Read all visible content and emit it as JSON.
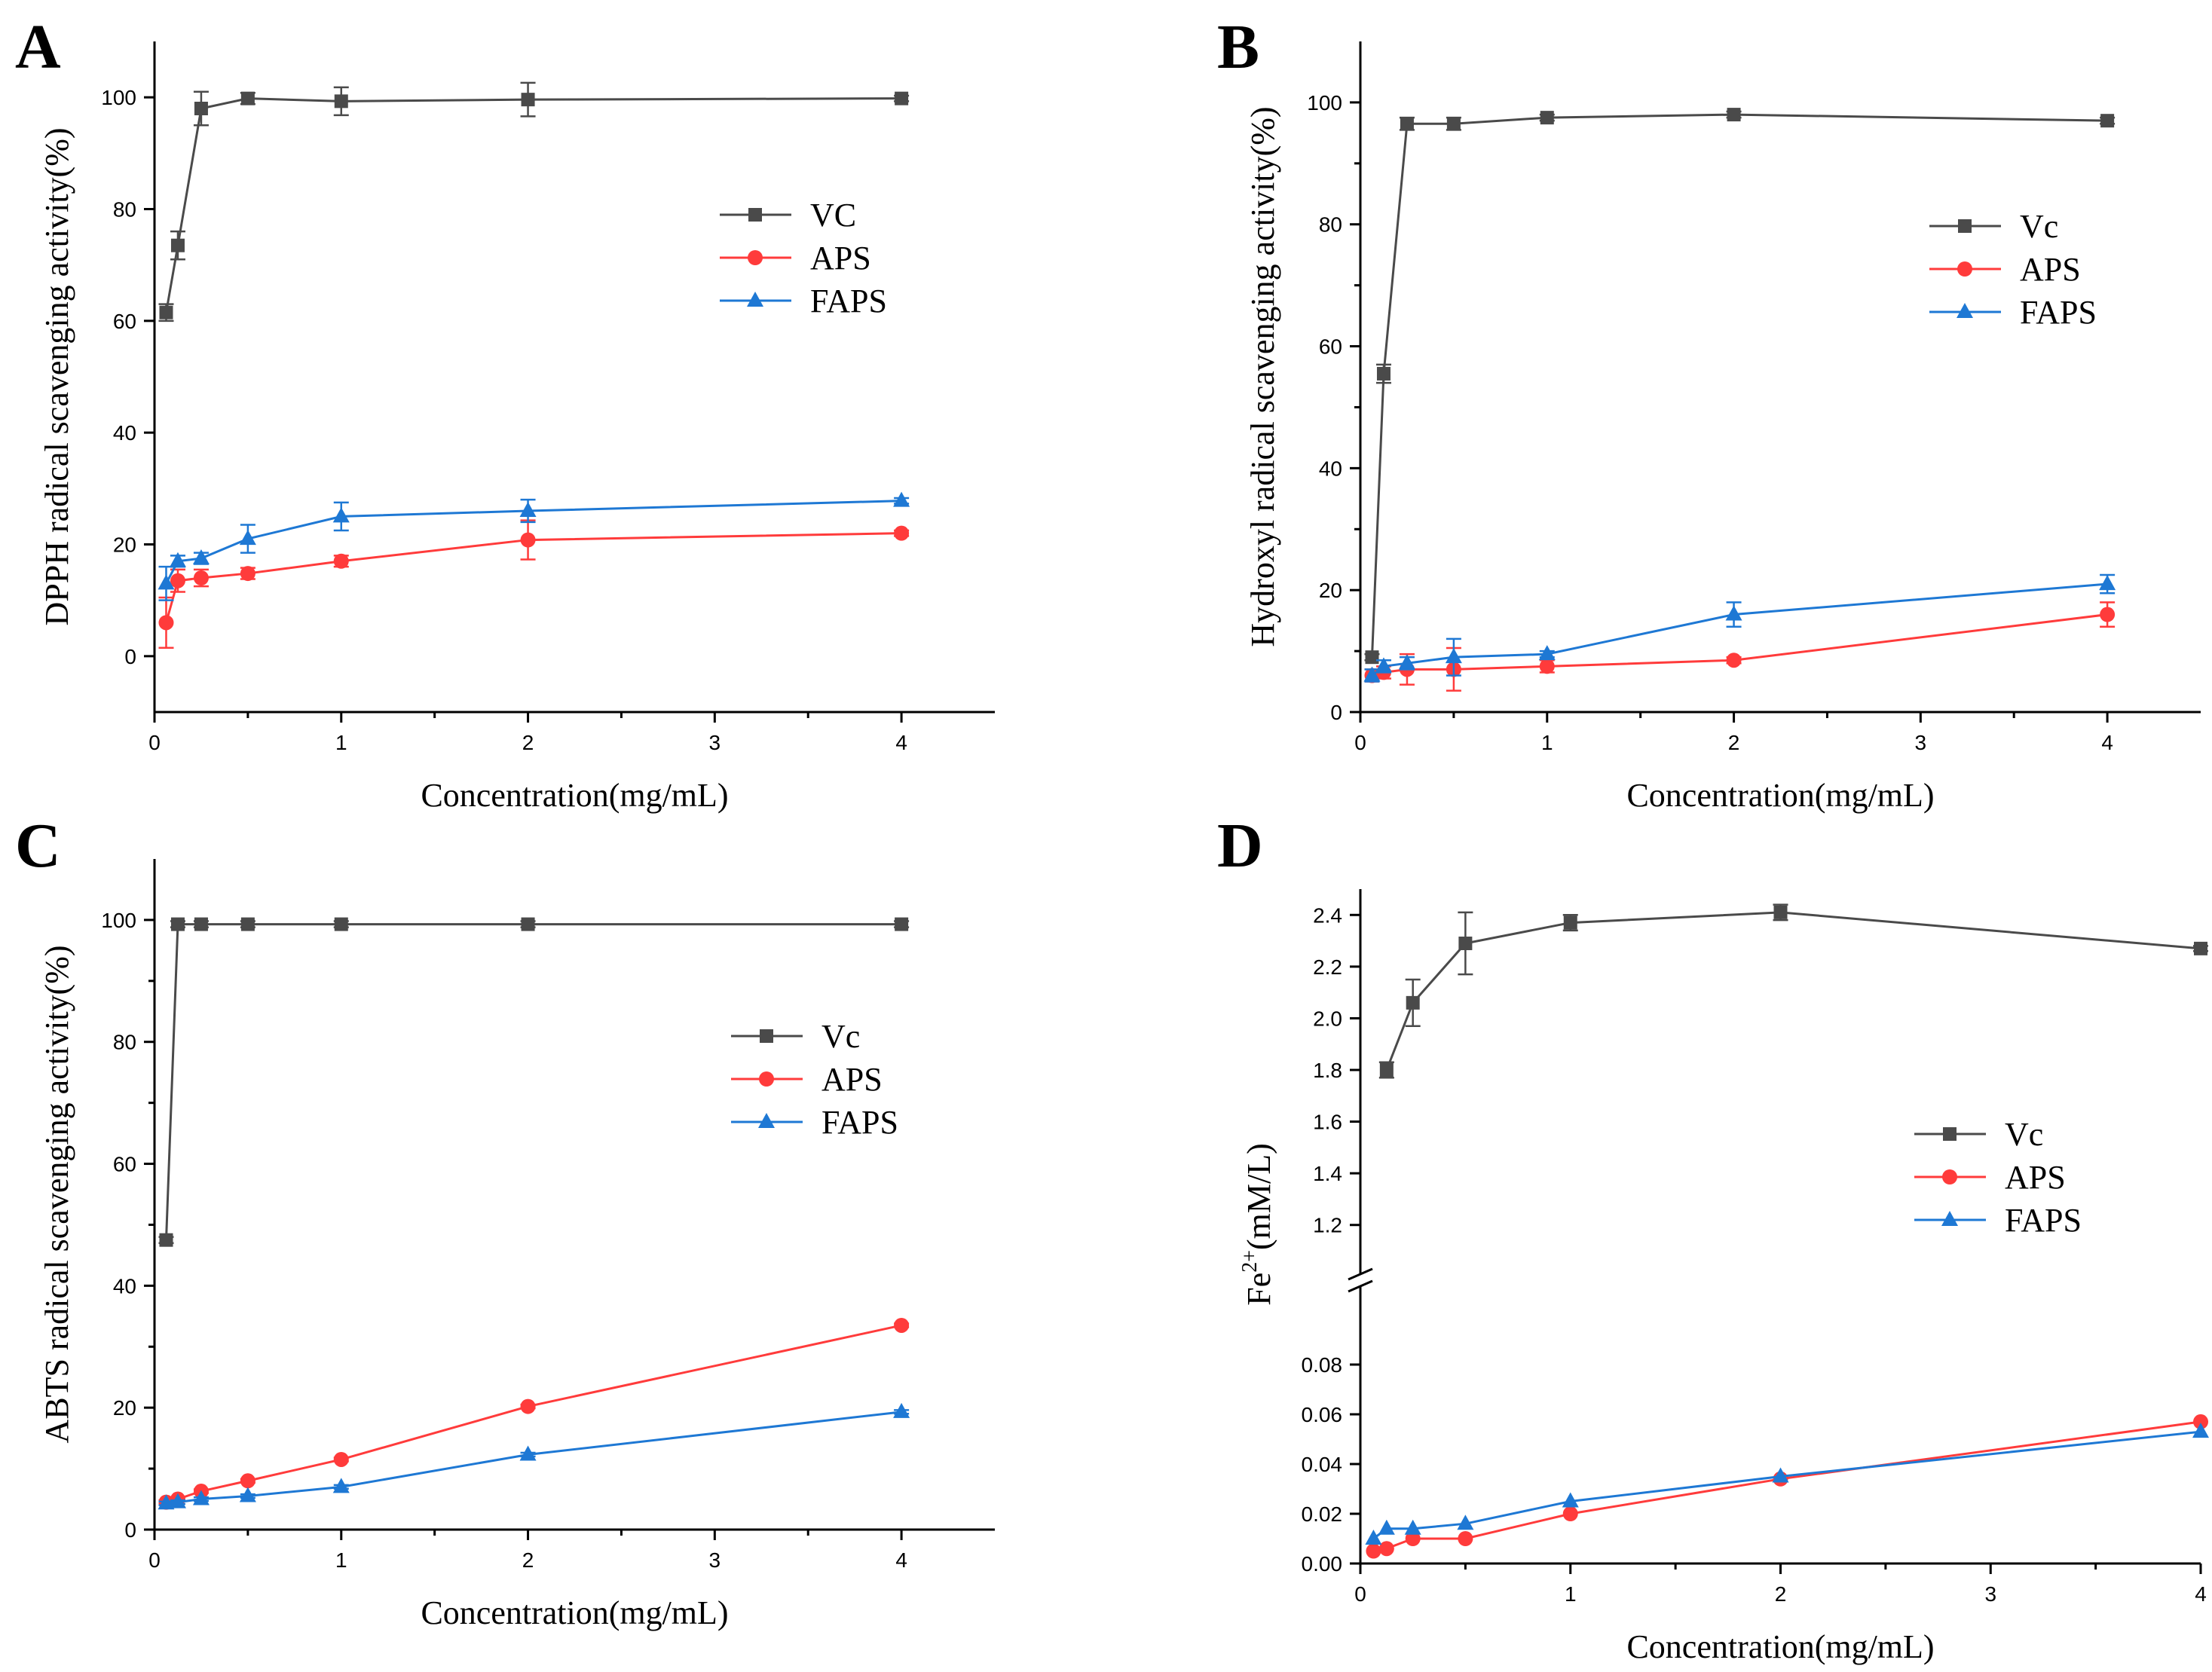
{
  "chart_data": [
    {
      "panel": "A",
      "type": "line",
      "xlabel": "Concentration(mg/mL)",
      "ylabel": "DPPH radical scavenging activity(%)",
      "xlim": [
        0,
        4.5
      ],
      "ylim": [
        -10,
        110
      ],
      "xticks": [
        0,
        1,
        2,
        3,
        4
      ],
      "yticks": [
        0,
        20,
        40,
        60,
        80,
        100
      ],
      "legend_position": "center-right",
      "x": [
        0.0625,
        0.125,
        0.25,
        0.5,
        1,
        2,
        4
      ],
      "series": [
        {
          "name": "VC",
          "color": "#4a4a4a",
          "marker": "square",
          "values": [
            61.5,
            73.5,
            98,
            99.8,
            99.3,
            99.6,
            99.8
          ],
          "errors": [
            1.5,
            2.5,
            3,
            1,
            2.5,
            3,
            0.5
          ]
        },
        {
          "name": "APS",
          "color": "#ff3b3b",
          "marker": "circle",
          "values": [
            6,
            13.5,
            14,
            14.8,
            17,
            20.8,
            22
          ],
          "errors": [
            4.5,
            2,
            1.5,
            1,
            1,
            3.5,
            0.5
          ]
        },
        {
          "name": "FAPS",
          "color": "#1e78d4",
          "marker": "triangle",
          "values": [
            13,
            17,
            17.5,
            21,
            25,
            26,
            27.8
          ],
          "errors": [
            3,
            1,
            1,
            2.5,
            2.5,
            2,
            0.5
          ]
        }
      ]
    },
    {
      "panel": "B",
      "type": "line",
      "xlabel": "Concentration(mg/mL)",
      "ylabel": "Hydroxyl radical scavenging activity(%)",
      "xlim": [
        0,
        4.5
      ],
      "ylim": [
        0,
        110
      ],
      "xticks": [
        0,
        1,
        2,
        3,
        4
      ],
      "yticks": [
        0,
        20,
        40,
        60,
        80,
        100
      ],
      "legend_position": "center-right",
      "x": [
        0.0625,
        0.125,
        0.25,
        0.5,
        1,
        2,
        4
      ],
      "series": [
        {
          "name": "Vc",
          "color": "#4a4a4a",
          "marker": "square",
          "values": [
            9,
            55.5,
            96.5,
            96.5,
            97.5,
            98,
            97
          ],
          "errors": [
            0.5,
            1.5,
            1,
            1,
            0.5,
            0.5,
            0.5
          ]
        },
        {
          "name": "APS",
          "color": "#ff3b3b",
          "marker": "circle",
          "values": [
            6,
            6.5,
            7,
            7,
            7.5,
            8.5,
            16
          ],
          "errors": [
            1,
            1,
            2.5,
            3.5,
            1,
            0.5,
            2
          ]
        },
        {
          "name": "FAPS",
          "color": "#1e78d4",
          "marker": "triangle",
          "values": [
            6,
            7.5,
            8,
            9,
            9.5,
            16,
            21
          ],
          "errors": [
            1,
            1,
            1,
            3,
            0.5,
            2,
            1.5
          ]
        }
      ]
    },
    {
      "panel": "C",
      "type": "line",
      "xlabel": "Concentration(mg/mL)",
      "ylabel": "ABTS radical scavenging activity(%)",
      "xlim": [
        0,
        4.5
      ],
      "ylim": [
        0,
        110
      ],
      "xticks": [
        0,
        1,
        2,
        3,
        4
      ],
      "yticks": [
        0,
        20,
        40,
        60,
        80,
        100
      ],
      "legend_position": "center-right",
      "x": [
        0.0625,
        0.125,
        0.25,
        0.5,
        1,
        2,
        4
      ],
      "series": [
        {
          "name": "Vc",
          "color": "#4a4a4a",
          "marker": "square",
          "values": [
            47.5,
            99.3,
            99.3,
            99.3,
            99.3,
            99.3,
            99.3
          ],
          "errors": [
            0.5,
            0.5,
            0.5,
            0.5,
            0.5,
            0.5,
            0.5
          ]
        },
        {
          "name": "APS",
          "color": "#ff3b3b",
          "marker": "circle",
          "values": [
            4.5,
            5,
            6.3,
            8,
            11.5,
            20.2,
            33.5
          ],
          "errors": [
            0.3,
            0.3,
            0.3,
            0.3,
            0.3,
            0.3,
            0.3
          ]
        },
        {
          "name": "FAPS",
          "color": "#1e78d4",
          "marker": "triangle",
          "values": [
            4.3,
            4.5,
            5,
            5.5,
            7,
            12.3,
            19.3
          ],
          "errors": [
            0.3,
            0.3,
            0.3,
            0.3,
            0.3,
            0.3,
            0.3
          ]
        }
      ]
    },
    {
      "panel": "D",
      "type": "line",
      "xlabel": "Concentration(mg/mL)",
      "ylabel": "Fe2+(mM/L)",
      "ylabel_parts": {
        "base": "Fe",
        "sup": "2+",
        "rest": "(mM/L)"
      },
      "xlim": [
        0,
        4
      ],
      "broken_y_axis": true,
      "ylim_lower": [
        0,
        0.1
      ],
      "ylim_upper": [
        1.1,
        2.5
      ],
      "xticks": [
        0,
        1,
        2,
        3,
        4
      ],
      "yticks_lower": [
        0.0,
        0.02,
        0.04,
        0.06,
        0.08
      ],
      "yticks_upper": [
        1.2,
        1.4,
        1.6,
        1.8,
        2.0,
        2.2,
        2.4
      ],
      "ytick_labels_lower": [
        "0.00",
        "0.02",
        "0.04",
        "0.06",
        "0.08"
      ],
      "ytick_labels_upper": [
        "1.2",
        "1.4",
        "1.6",
        "1.8",
        "2.0",
        "2.2",
        "2.4"
      ],
      "legend_position": "center-right",
      "series": [
        {
          "name": "Vc",
          "color": "#4a4a4a",
          "marker": "square",
          "segment": "upper",
          "x": [
            0.125,
            0.25,
            0.5,
            1,
            2,
            4
          ],
          "values": [
            1.8,
            2.06,
            2.29,
            2.37,
            2.41,
            2.27
          ],
          "errors": [
            0.03,
            0.09,
            0.12,
            0.03,
            0.03,
            0.01
          ]
        },
        {
          "name": "APS",
          "color": "#ff3b3b",
          "marker": "circle",
          "segment": "lower",
          "x": [
            0.0625,
            0.125,
            0.25,
            0.5,
            1,
            2,
            4
          ],
          "values": [
            0.005,
            0.006,
            0.01,
            0.01,
            0.02,
            0.034,
            0.057
          ]
        },
        {
          "name": "FAPS",
          "color": "#1e78d4",
          "marker": "triangle",
          "segment": "lower",
          "x": [
            0.0625,
            0.125,
            0.25,
            0.5,
            1,
            2,
            4
          ],
          "values": [
            0.01,
            0.014,
            0.014,
            0.016,
            0.025,
            0.035,
            0.053
          ]
        }
      ]
    }
  ]
}
